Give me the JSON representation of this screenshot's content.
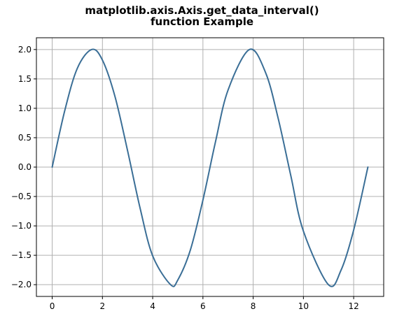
{
  "chart_data": {
    "type": "line",
    "title_lines": [
      "matplotlib.axis.Axis.get_data_interval()",
      "function Example"
    ],
    "xlabel": "",
    "ylabel": "",
    "xlim": [
      -0.628,
      13.195
    ],
    "ylim": [
      -2.2,
      2.2
    ],
    "x_ticks": [
      0,
      2,
      4,
      6,
      8,
      10,
      12
    ],
    "x_tick_labels": [
      "0",
      "2",
      "4",
      "6",
      "8",
      "10",
      "12"
    ],
    "y_ticks": [
      2.0,
      1.5,
      1.0,
      0.5,
      0.0,
      -0.5,
      -1.0,
      -1.5,
      -2.0
    ],
    "y_tick_labels": [
      "2.0",
      "1.5",
      "1.0",
      "0.5",
      "0.0",
      "−0.5",
      "−1.0",
      "−1.5",
      "−2.0"
    ],
    "grid": true,
    "series": [
      {
        "color": "#3a6e96",
        "x": [
          0,
          0.5,
          1,
          1.5708,
          2,
          2.5,
          3,
          3.5,
          4,
          4.7124,
          5,
          5.5,
          6,
          6.5,
          7,
          7.854,
          8.5,
          9,
          9.5,
          10,
          10.9956,
          11.5,
          12,
          12.566
        ],
        "y": [
          0,
          0.96,
          1.68,
          2.0,
          1.82,
          1.2,
          0.28,
          -0.7,
          -1.51,
          -2.0,
          -1.92,
          -1.41,
          -0.56,
          0.43,
          1.31,
          2.0,
          1.6,
          0.82,
          -0.15,
          -1.09,
          -2.0,
          -1.75,
          -1.07,
          0.0
        ]
      }
    ]
  }
}
